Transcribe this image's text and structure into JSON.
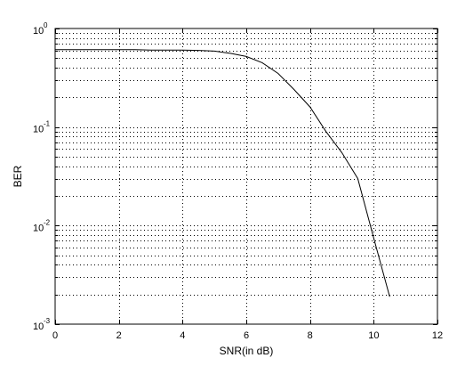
{
  "chart_data": {
    "type": "line",
    "title": "",
    "xlabel": "SNR(in dB)",
    "ylabel": "BER",
    "xlim": [
      0,
      12
    ],
    "ylim": [
      0.001,
      1
    ],
    "yscale": "log",
    "grid": true,
    "x_ticks": [
      "0",
      "2",
      "4",
      "6",
      "8",
      "10",
      "12"
    ],
    "y_ticks": [
      {
        "base": "10",
        "exp": "-3",
        "value": 0.001
      },
      {
        "base": "10",
        "exp": "-2",
        "value": 0.01
      },
      {
        "base": "10",
        "exp": "-1",
        "value": 0.1
      },
      {
        "base": "10",
        "exp": "0",
        "value": 1
      }
    ],
    "colors": {
      "line": "#000000",
      "grid": "#000000",
      "axes": "#000000"
    },
    "series": [
      {
        "x": [
          0,
          0.5,
          1,
          1.5,
          2,
          2.5,
          3,
          3.5,
          4,
          4.5,
          5,
          5.5,
          6,
          6.5,
          7,
          7.5,
          8,
          8.5,
          9,
          9.5,
          10,
          10.5
        ],
        "y": [
          0.61,
          0.61,
          0.61,
          0.61,
          0.61,
          0.61,
          0.605,
          0.605,
          0.605,
          0.6,
          0.59,
          0.56,
          0.52,
          0.45,
          0.35,
          0.24,
          0.16,
          0.09,
          0.055,
          0.03,
          0.0075,
          0.0019
        ]
      }
    ]
  }
}
